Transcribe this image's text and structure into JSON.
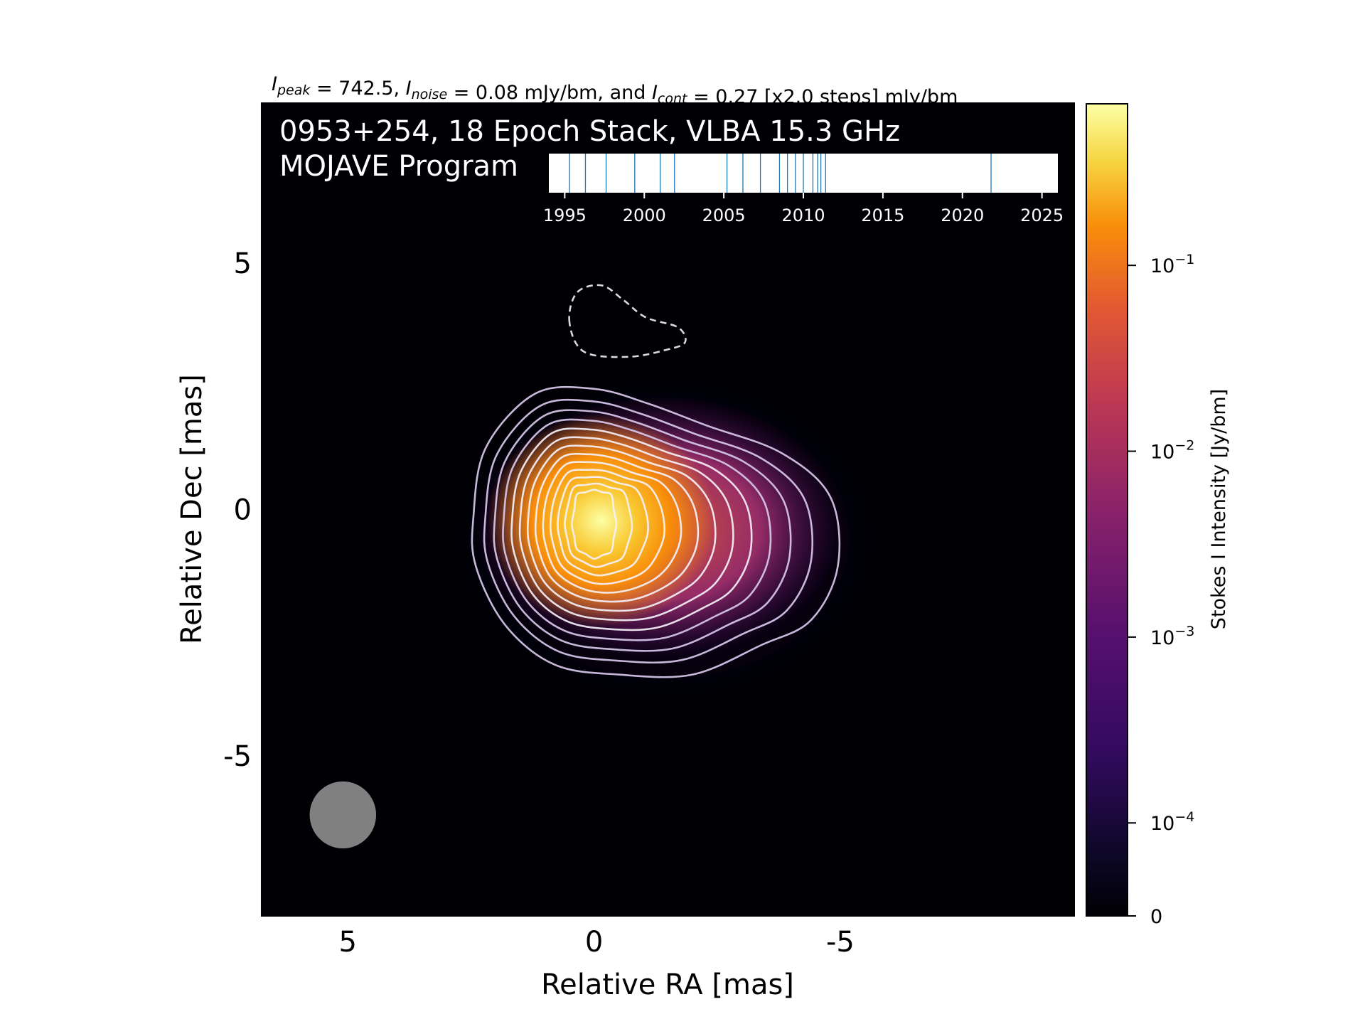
{
  "chart_data": {
    "type": "heatmap",
    "title_parts": {
      "peak_symbol": "I",
      "peak_sub": "peak",
      "peak_value": " = 742.5, ",
      "noise_symbol": "I",
      "noise_sub": "noise",
      "noise_value": " = 0.08 mJy/bm, and ",
      "cont_symbol": "I",
      "cont_sub": "cont",
      "cont_value": " = 0.27 [x2.0 steps] mJy/bm"
    },
    "overlay_title_line1": "0953+254, 18 Epoch Stack, VLBA 15.3 GHz",
    "overlay_title_line2": "MOJAVE Program",
    "xlabel": "Relative RA [mas]",
    "ylabel": "Relative Dec [mas]",
    "x_axis_inverted": true,
    "xlim": [
      6.75,
      -9.75
    ],
    "ylim": [
      -8.25,
      8.25
    ],
    "xticks": [
      {
        "value": 5,
        "label": "5"
      },
      {
        "value": 0,
        "label": "0"
      },
      {
        "value": -5,
        "label": "-5"
      }
    ],
    "yticks": [
      {
        "value": 5,
        "label": "5"
      },
      {
        "value": 0,
        "label": "0"
      },
      {
        "value": -5,
        "label": "-5"
      }
    ],
    "source": {
      "peak_position": [
        0,
        -0.15
      ],
      "peak_intensity_mJy_per_beam": 742.5,
      "noise_mJy_per_beam": 0.08,
      "base_contour_mJy_per_beam": 0.27,
      "contour_step_factor": 2.0,
      "contour_count": 13,
      "negative_contour_center": [
        -0.4,
        3.8
      ]
    },
    "beam": {
      "center": [
        5.1,
        -6.2
      ],
      "major_mas": 1.6,
      "minor_mas": 1.25,
      "position_angle_deg": 0,
      "color": "#808080"
    },
    "colorbar": {
      "label": "Stokes I Intensity [Jy/bm]",
      "colormap": "inferno",
      "scale": "log",
      "ticks": [
        {
          "value": 0.1,
          "base": "10",
          "exp": "−1"
        },
        {
          "value": 0.01,
          "base": "10",
          "exp": "−2"
        },
        {
          "value": 0.001,
          "base": "10",
          "exp": "−3"
        },
        {
          "value": 0.0001,
          "base": "10",
          "exp": "−4"
        },
        {
          "value": 0,
          "label": "0"
        }
      ]
    },
    "epoch_timeline": {
      "ticks": [
        1995,
        2000,
        2005,
        2010,
        2015,
        2020,
        2025
      ],
      "xlim": [
        1994,
        2026
      ],
      "epochs": [
        1995.3,
        1996.3,
        1997.6,
        1999.4,
        2001.0,
        2001.9,
        2005.2,
        2006.2,
        2007.3,
        2008.5,
        2009.0,
        2009.5,
        2010.0,
        2010.6,
        2010.9,
        2011.1,
        2011.4,
        2021.8
      ],
      "epoch_color": "#1f77b4"
    },
    "grid": false,
    "legend": "none"
  }
}
